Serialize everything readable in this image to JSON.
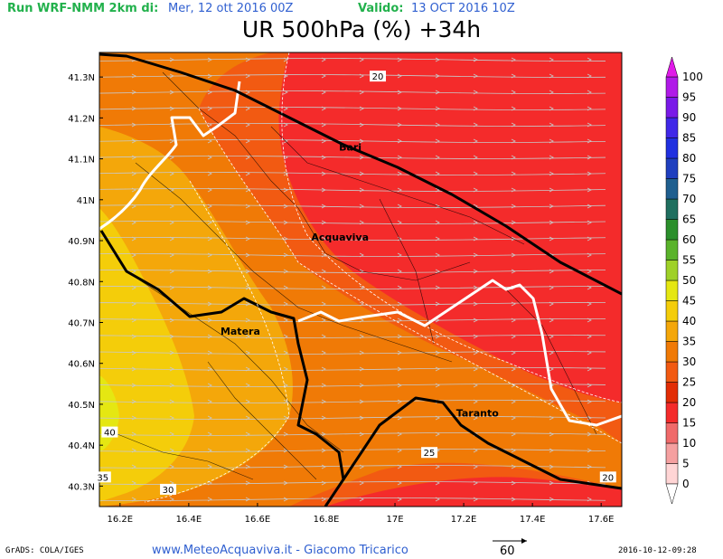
{
  "header": {
    "run": "Run WRF-NMM 2km di:",
    "init": "Mer, 12 ott 2016 00Z",
    "valid_label": "Valido:",
    "valid_time": "13 OCT 2016 10Z"
  },
  "title": "UR 500hPa (%) +34h",
  "map": {
    "lat_labels": [
      "41.3N",
      "41.2N",
      "41.1N",
      "41N",
      "40.9N",
      "40.8N",
      "40.7N",
      "40.6N",
      "40.5N",
      "40.4N",
      "40.3N"
    ],
    "lat_values": [
      41.3,
      41.2,
      41.1,
      41.0,
      40.9,
      40.8,
      40.7,
      40.6,
      40.5,
      40.4,
      40.3
    ],
    "lon_labels": [
      "16.2E",
      "16.4E",
      "16.6E",
      "16.8E",
      "17E",
      "17.2E",
      "17.4E",
      "17.6E"
    ],
    "lon_values": [
      16.2,
      16.4,
      16.6,
      16.8,
      17.0,
      17.2,
      17.4,
      17.6
    ],
    "lat_range": [
      40.25,
      41.36
    ],
    "lon_range": [
      16.14,
      17.66
    ],
    "cities": [
      {
        "name": "Bari",
        "lon": 16.87,
        "lat": 41.12
      },
      {
        "name": "Acquaviva",
        "lon": 16.84,
        "lat": 40.9
      },
      {
        "name": "Matera",
        "lon": 16.55,
        "lat": 40.67
      },
      {
        "name": "Taranto",
        "lon": 17.24,
        "lat": 40.47
      }
    ],
    "contour_labels": [
      {
        "text": "20",
        "lon": 16.95,
        "lat": 41.3
      },
      {
        "text": "25",
        "lon": 17.1,
        "lat": 40.38
      },
      {
        "text": "30",
        "lon": 16.34,
        "lat": 40.29
      },
      {
        "text": "35",
        "lon": 16.15,
        "lat": 40.32
      },
      {
        "text": "40",
        "lon": 16.17,
        "lat": 40.43
      },
      {
        "text": "20",
        "lon": 17.62,
        "lat": 40.32
      }
    ]
  },
  "colorbar": {
    "labels": [
      "0",
      "5",
      "10",
      "15",
      "20",
      "25",
      "30",
      "35",
      "40",
      "45",
      "50",
      "55",
      "60",
      "65",
      "70",
      "75",
      "80",
      "85",
      "90",
      "95",
      "100"
    ],
    "colors": [
      "#ffd5d5",
      "#f5a0a0",
      "#f06a6a",
      "#f42b2b",
      "#e22d05",
      "#f25a12",
      "#f07a06",
      "#f4a70a",
      "#f4cd0a",
      "#e5e712",
      "#9fd128",
      "#5ab32b",
      "#2b8f2b",
      "#1f6f5f",
      "#1f5f8f",
      "#1f3fbf",
      "#2030e0",
      "#4028e8",
      "#7a1ae8",
      "#b01ae8",
      "#e01ae8"
    ]
  },
  "footer": {
    "left": "GrADS: COLA/IGES",
    "site": "www.MeteoAcquaviva.it  -  Giacomo Tricarico",
    "reference_vector": "60",
    "right": "2016-10-12-09:28"
  }
}
